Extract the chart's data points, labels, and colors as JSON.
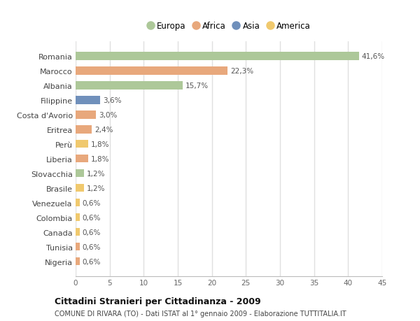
{
  "countries": [
    "Romania",
    "Marocco",
    "Albania",
    "Filippine",
    "Costa d'Avorio",
    "Eritrea",
    "Perù",
    "Liberia",
    "Slovacchia",
    "Brasile",
    "Venezuela",
    "Colombia",
    "Canada",
    "Tunisia",
    "Nigeria"
  ],
  "values": [
    41.6,
    22.3,
    15.7,
    3.6,
    3.0,
    2.4,
    1.8,
    1.8,
    1.2,
    1.2,
    0.6,
    0.6,
    0.6,
    0.6,
    0.6
  ],
  "labels": [
    "41,6%",
    "22,3%",
    "15,7%",
    "3,6%",
    "3,0%",
    "2,4%",
    "1,8%",
    "1,8%",
    "1,2%",
    "1,2%",
    "0,6%",
    "0,6%",
    "0,6%",
    "0,6%",
    "0,6%"
  ],
  "continents": [
    "Europa",
    "Africa",
    "Europa",
    "Asia",
    "Africa",
    "Africa",
    "America",
    "Africa",
    "Europa",
    "America",
    "America",
    "America",
    "America",
    "Africa",
    "Africa"
  ],
  "continent_colors": {
    "Europa": "#adc899",
    "Africa": "#e8a87c",
    "Asia": "#7090bb",
    "America": "#f0c96e"
  },
  "legend_order": [
    "Europa",
    "Africa",
    "Asia",
    "America"
  ],
  "title_main": "Cittadini Stranieri per Cittadinanza - 2009",
  "title_sub": "COMUNE DI RIVARA (TO) - Dati ISTAT al 1° gennaio 2009 - Elaborazione TUTTITALIA.IT",
  "xlim": [
    0,
    45
  ],
  "xticks": [
    0,
    5,
    10,
    15,
    20,
    25,
    30,
    35,
    40,
    45
  ],
  "background_color": "#ffffff",
  "grid_color": "#e0e0e0",
  "bar_height": 0.55
}
